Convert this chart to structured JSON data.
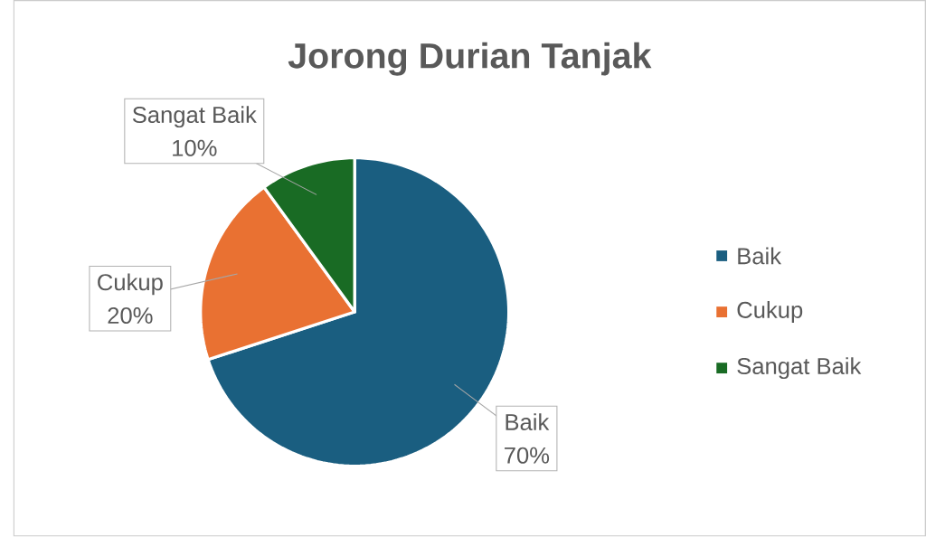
{
  "chart_data": {
    "type": "pie",
    "title": "Jorong Durian Tanjak",
    "categories": [
      "Baik",
      "Cukup",
      "Sangat Baik"
    ],
    "values": [
      70,
      20,
      10
    ],
    "value_labels": [
      "70%",
      "20%",
      "10%"
    ],
    "colors": [
      "#1a5e80",
      "#e97132",
      "#196b24"
    ],
    "legend": "right"
  }
}
